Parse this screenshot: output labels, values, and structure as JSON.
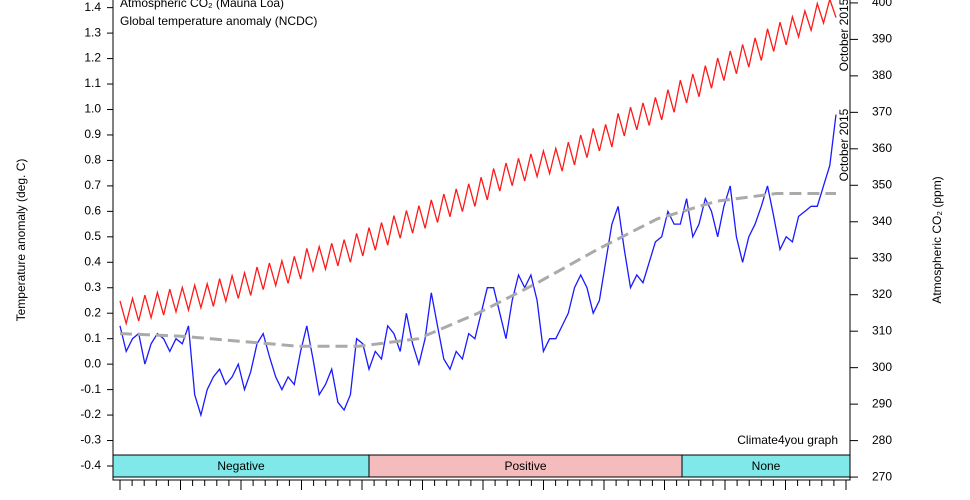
{
  "chart_data": {
    "type": "line",
    "ylabel": "Temperature anomaly (deg. C)",
    "y2label": "Atmospheric CO₂ (ppm)",
    "ylim": [
      -0.455,
      1.43
    ],
    "yticks": [
      -0.4,
      -0.3,
      -0.2,
      -0.1,
      {
        "value": 0,
        "label": "0.0"
      },
      0.1,
      0.2,
      0.3,
      0.4,
      0.5,
      0.6,
      0.7,
      0.8,
      0.9,
      {
        "value": 1,
        "label": "1.0"
      },
      1.1,
      1.2,
      1.3,
      1.4
    ],
    "y2lim": [
      269.2,
      400.8
    ],
    "y2ticks": [
      270,
      280,
      290,
      300,
      310,
      320,
      330,
      340,
      350,
      360,
      370,
      380,
      390,
      400
    ],
    "series": [
      {
        "name": "Atmospheric CO₂ (Mauna Loa)",
        "color": "#ff1a1a",
        "axis": "y2",
        "values": [
          318.3,
          312.1,
          319.0,
          312.8,
          319.9,
          313.7,
          320.6,
          314.4,
          321.5,
          315.3,
          322.0,
          315.8,
          322.6,
          316.4,
          323.0,
          316.8,
          324.4,
          318.2,
          325.2,
          319.0,
          326.0,
          319.8,
          327.6,
          321.4,
          328.7,
          322.5,
          329.3,
          323.1,
          330.5,
          324.3,
          332.7,
          326.5,
          333.2,
          327.0,
          334.1,
          327.9,
          335.1,
          328.9,
          336.8,
          330.6,
          338.4,
          332.2,
          339.8,
          333.6,
          341.7,
          335.5,
          343.1,
          336.9,
          344.4,
          338.2,
          346.0,
          339.8,
          347.6,
          341.4,
          349.0,
          342.8,
          350.4,
          344.2,
          352.2,
          346.0,
          354.6,
          348.4,
          356.1,
          349.9,
          357.4,
          351.2,
          358.6,
          352.4,
          359.4,
          353.2,
          360.1,
          353.9,
          361.8,
          355.6,
          363.8,
          357.6,
          365.6,
          359.4,
          366.7,
          360.5,
          369.7,
          363.5,
          371.4,
          365.2,
          372.6,
          366.4,
          374.1,
          367.9,
          376.2,
          370.0,
          378.8,
          372.6,
          380.5,
          374.3,
          382.8,
          376.6,
          384.9,
          378.7,
          386.8,
          380.6,
          388.6,
          382.4,
          390.4,
          384.2,
          392.9,
          386.7,
          394.7,
          388.5,
          396.2,
          390.7,
          397.8,
          392.5,
          399.8,
          394.5,
          401.0,
          396.0
        ]
      },
      {
        "name": "Global temperature anomaly (NCDC)",
        "color": "#1a1aff",
        "axis": "y",
        "values": [
          0.15,
          0.05,
          0.1,
          0.12,
          0.0,
          0.08,
          0.12,
          0.1,
          0.05,
          0.1,
          0.08,
          0.15,
          -0.12,
          -0.2,
          -0.1,
          -0.05,
          -0.02,
          -0.08,
          -0.05,
          0.0,
          -0.1,
          -0.03,
          0.08,
          0.12,
          0.03,
          -0.05,
          -0.1,
          -0.05,
          -0.08,
          0.05,
          0.15,
          0.02,
          -0.12,
          -0.08,
          -0.02,
          -0.15,
          -0.18,
          -0.12,
          0.1,
          0.08,
          -0.02,
          0.05,
          0.02,
          0.15,
          0.12,
          0.05,
          0.2,
          0.08,
          0.0,
          0.1,
          0.28,
          0.15,
          0.02,
          -0.02,
          0.05,
          0.02,
          0.12,
          0.1,
          0.2,
          0.3,
          0.3,
          0.2,
          0.1,
          0.25,
          0.35,
          0.3,
          0.35,
          0.25,
          0.05,
          0.1,
          0.1,
          0.15,
          0.2,
          0.3,
          0.35,
          0.3,
          0.2,
          0.25,
          0.4,
          0.55,
          0.62,
          0.45,
          0.3,
          0.35,
          0.32,
          0.4,
          0.48,
          0.5,
          0.6,
          0.55,
          0.55,
          0.65,
          0.5,
          0.55,
          0.65,
          0.6,
          0.5,
          0.62,
          0.7,
          0.5,
          0.4,
          0.5,
          0.55,
          0.62,
          0.7,
          0.58,
          0.45,
          0.5,
          0.48,
          0.58,
          0.6,
          0.62,
          0.62,
          0.7,
          0.78,
          0.98
        ]
      }
    ],
    "trend_line": {
      "color": "#aaaaaa",
      "values": [
        0.12,
        0.11,
        0.09,
        0.07,
        0.07,
        0.1,
        0.2,
        0.32,
        0.45,
        0.57,
        0.64,
        0.67,
        0.67
      ]
    },
    "annotations": [
      {
        "text": "October 2015",
        "color": "#ff1a1a"
      },
      {
        "text": "October 2015",
        "color": "#1a1aff"
      },
      {
        "text": "Climate4you graph",
        "color": "#1a1aff"
      }
    ],
    "phases": [
      {
        "label": "Negative",
        "color": "#80e8e8"
      },
      {
        "label": "Positive",
        "color": "#f4bcbc"
      },
      {
        "label": "None",
        "color": "#80e8e8"
      }
    ]
  }
}
